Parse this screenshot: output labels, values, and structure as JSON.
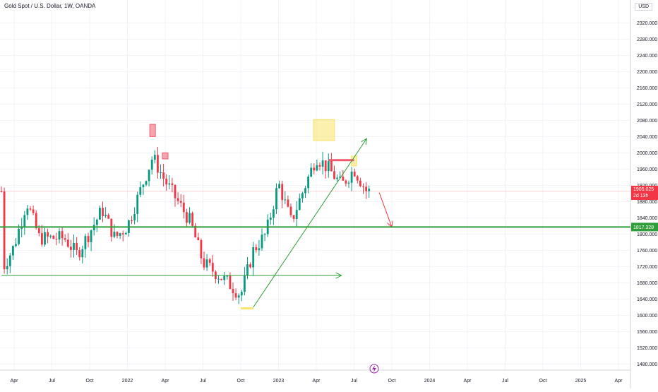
{
  "header": {
    "title": "Gold Spot / U.S. Dollar, 1W, OANDA",
    "currency": "USD"
  },
  "colors": {
    "up": "#089981",
    "down": "#f23645",
    "support_line": "#2e9d3a",
    "arrow_green": "#2e9d3a",
    "arrow_red": "#f23645",
    "yellow_zone": "#f7e46a",
    "pink_zone": "#f05a6e"
  },
  "chart_data": {
    "type": "candlestick",
    "symbol": "Gold Spot / U.S. Dollar",
    "interval": "1W",
    "exchange": "OANDA",
    "ylim": [
      1465,
      2345
    ],
    "xlabels": [
      "Apr",
      "Jul",
      "Oct",
      "2022",
      "Apr",
      "Jul",
      "Oct",
      "2023",
      "Apr",
      "Jul",
      "Oct",
      "2024",
      "Apr",
      "Jul",
      "Oct",
      "2025",
      "Apr"
    ],
    "yticks": [
      "2320.000",
      "2280.000",
      "2240.000",
      "2200.000",
      "2160.000",
      "2120.000",
      "2080.000",
      "2040.000",
      "2000.000",
      "1960.000",
      "1920.000",
      "1880.000",
      "1840.000",
      "1800.000",
      "1760.000",
      "1720.000",
      "1680.000",
      "1640.000",
      "1600.000",
      "1560.000",
      "1520.000",
      "1480.000"
    ],
    "ytick_values": [
      2320,
      2280,
      2240,
      2200,
      2160,
      2120,
      2080,
      2040,
      2000,
      1960,
      1920,
      1880,
      1840,
      1800,
      1760,
      1720,
      1680,
      1640,
      1600,
      1560,
      1520,
      1480
    ],
    "price_ranges": [
      {
        "date": "2021-03",
        "low": 1677,
        "high": 1750
      },
      {
        "date": "2021-05",
        "low": 1770,
        "high": 1916
      },
      {
        "date": "2021-06",
        "low": 1750,
        "high": 1895
      },
      {
        "date": "2021-08",
        "low": 1685,
        "high": 1830
      },
      {
        "date": "2021-09",
        "low": 1720,
        "high": 1835
      },
      {
        "date": "2021-11",
        "low": 1760,
        "high": 1877
      },
      {
        "date": "2021-12",
        "low": 1750,
        "high": 1830
      },
      {
        "date": "2022-01",
        "low": 1780,
        "high": 1855
      },
      {
        "date": "2022-03",
        "low": 1890,
        "high": 2070
      },
      {
        "date": "2022-04",
        "low": 1870,
        "high": 1998
      },
      {
        "date": "2022-06",
        "low": 1800,
        "high": 1880
      },
      {
        "date": "2022-07",
        "low": 1680,
        "high": 1780
      },
      {
        "date": "2022-09",
        "low": 1620,
        "high": 1740
      },
      {
        "date": "2022-11",
        "low": 1620,
        "high": 1790
      },
      {
        "date": "2022-12",
        "low": 1760,
        "high": 1835
      },
      {
        "date": "2023-02",
        "low": 1805,
        "high": 1960
      },
      {
        "date": "2023-04",
        "low": 1950,
        "high": 2067
      },
      {
        "date": "2023-06",
        "low": 1890,
        "high": 1985
      },
      {
        "date": "2023-07",
        "low": 1895,
        "high": 1985
      },
      {
        "date": "2023-08",
        "low": 1890,
        "high": 1935
      }
    ],
    "last_price": "1905.025",
    "countdown": "2d 13h",
    "support_level": "1817.328",
    "support_value": 1817.328,
    "drawings": [
      {
        "kind": "rect",
        "color": "pink",
        "from": "2022-03",
        "to": "2022-03",
        "low": 2040,
        "high": 2070
      },
      {
        "kind": "rect",
        "color": "pink",
        "from": "2022-04",
        "to": "2022-04",
        "low": 1985,
        "high": 2000
      },
      {
        "kind": "rect",
        "color": "yellow",
        "from": "2023-04",
        "to": "2023-05",
        "low": 2030,
        "high": 2082
      },
      {
        "kind": "rect",
        "color": "yellow",
        "from": "2023-07",
        "to": "2023-07",
        "low": 1968,
        "high": 1992
      },
      {
        "kind": "hline",
        "color": "pink",
        "from": "2023-05",
        "to": "2023-07",
        "value": 1982
      },
      {
        "kind": "arrow",
        "color": "green",
        "from": {
          "date": "2021-03",
          "value": 1698
        },
        "to": {
          "date": "2023-06",
          "value": 1698
        }
      },
      {
        "kind": "arrow",
        "color": "green",
        "from": {
          "date": "2022-11",
          "value": 1620
        },
        "to": {
          "date": "2023-08",
          "value": 2035
        }
      },
      {
        "kind": "arrow",
        "color": "red",
        "from": {
          "date": "2023-09",
          "value": 1902
        },
        "to": {
          "date": "2023-10",
          "value": 1817
        }
      },
      {
        "kind": "hline",
        "color": "yellow",
        "from": "2022-10",
        "to": "2022-11",
        "value": 1617
      }
    ]
  }
}
